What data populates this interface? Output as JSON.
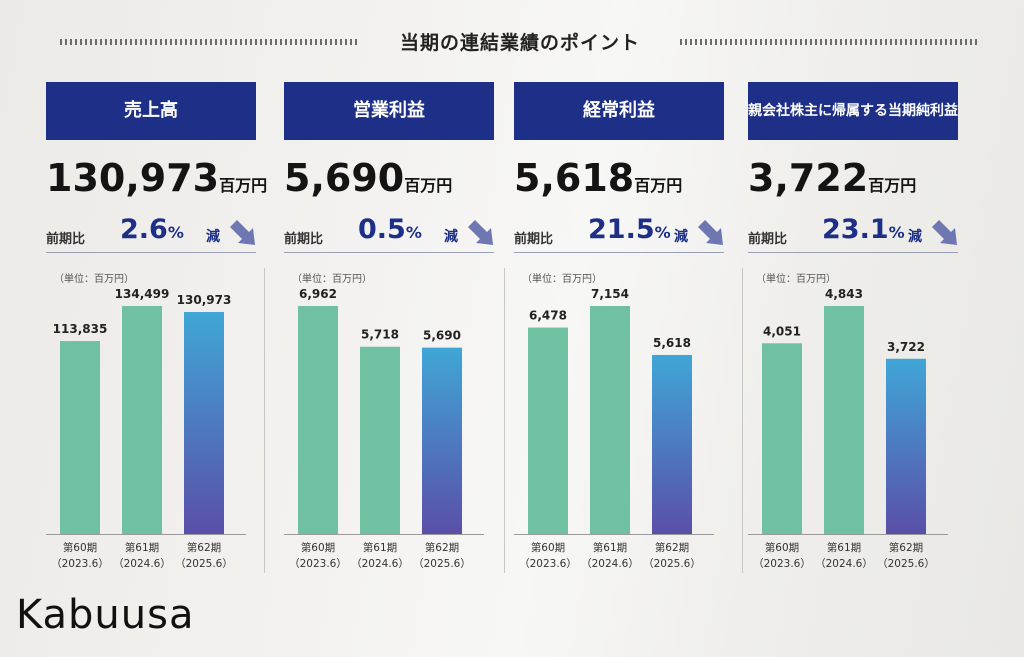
{
  "heading": "当期の連結業績のポイント",
  "watermark": "Kabuusa",
  "unit_label": "（単位：百万円）",
  "unit": "百万円",
  "ratio_label": "前期比",
  "decrease_label": "減",
  "percent_sign": "%",
  "colors": {
    "banner": "#1d2f86",
    "bar_prior": "#6fc1a1",
    "bar_current_top": "#40a6d6",
    "bar_current_bottom": "#5a4fa8",
    "arrow": "#6f77b3"
  },
  "panels": [
    {
      "title": "売上高",
      "value": "130,973",
      "change": "2.6"
    },
    {
      "title": "営業利益",
      "value": "5,690",
      "change": "0.5"
    },
    {
      "title": "経常利益",
      "value": "5,618",
      "change": "21.5"
    },
    {
      "title": "親会社株主に帰属する当期純利益",
      "value": "3,722",
      "change": "23.1"
    }
  ],
  "chart_data": [
    {
      "type": "bar",
      "categories": [
        "第60期\n（2023.6）",
        "第61期\n（2024.6）",
        "第62期\n（2025.6）"
      ],
      "values": [
        113835,
        134499,
        130973
      ],
      "value_labels": [
        "113,835",
        "134,499",
        "130,973"
      ],
      "title": "売上高"
    },
    {
      "type": "bar",
      "categories": [
        "第60期\n（2023.6）",
        "第61期\n（2024.6）",
        "第62期\n（2025.6）"
      ],
      "values": [
        6962,
        5718,
        5690
      ],
      "value_labels": [
        "6,962",
        "5,718",
        "5,690"
      ],
      "title": "営業利益"
    },
    {
      "type": "bar",
      "categories": [
        "第60期\n（2023.6）",
        "第61期\n（2024.6）",
        "第62期\n（2025.6）"
      ],
      "values": [
        6478,
        7154,
        5618
      ],
      "value_labels": [
        "6,478",
        "7,154",
        "5,618"
      ],
      "title": "経常利益"
    },
    {
      "type": "bar",
      "categories": [
        "第60期\n（2023.6）",
        "第61期\n（2024.6）",
        "第62期\n（2025.6）"
      ],
      "values": [
        4051,
        4843,
        3722
      ],
      "value_labels": [
        "4,051",
        "4,843",
        "3,722"
      ],
      "title": "親会社株主に帰属する当期純利益"
    }
  ]
}
